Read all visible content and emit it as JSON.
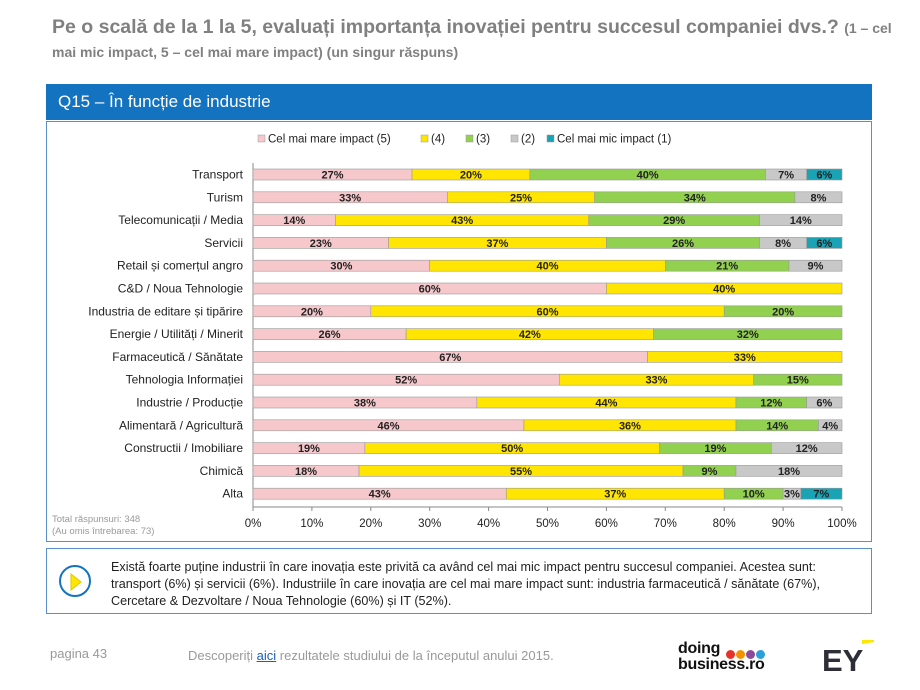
{
  "header": {
    "title_main": "Pe o scală de la 1 la 5, evaluați importanța inovației pentru succesul companiei dvs.?",
    "title_sub": "(1 – cel mai mic impact, 5 – cel mai mare impact) (un singur răspuns)"
  },
  "banner": {
    "label": "Q15 – În funcție de industrie"
  },
  "note": {
    "line1": "Total răspunsuri: 348",
    "line2": "(Au omis întrebarea: 73)"
  },
  "insight": {
    "text": "Există foarte puține industrii în care inovația este privită ca având cel mai mic impact pentru succesul companiei. Acestea sunt: transport (6%) și servicii (6%). Industriile în care inovația are cel mai mare impact sunt: industria farmaceutică / sănătate (67%), Cercetare & Dezvoltare / Noua Tehnologie (60%) și IT (52%).",
    "icon": "play-arrow-icon"
  },
  "footer": {
    "page": "pagina 43",
    "text_before": "Descoperiți ",
    "link": "aici",
    "text_after": " rezultatele studiului de la începutul anului 2015.",
    "logo_line1": "doing",
    "logo_line2": "business.ro",
    "logo_dot_colors": [
      "#e63329",
      "#f39200",
      "#8c4a9c",
      "#2a9fd8"
    ],
    "ey_logo": "EY"
  },
  "chart_data": {
    "type": "bar",
    "orientation": "horizontal",
    "stacked": "percent",
    "categories": [
      "Transport",
      "Turism",
      "Telecomunicații / Media",
      "Servicii",
      "Retail și comerțul angro",
      "C&D / Noua Tehnologie",
      "Industria de editare și tipărire",
      "Energie / Utilități / Minerit",
      "Farmaceutică / Sănătate",
      "Tehnologia Informației",
      "Industrie / Producție",
      "Alimentară / Agricultură",
      "Constructii / Imobiliare",
      "Chimică",
      "Alta"
    ],
    "series": [
      {
        "name": "Cel mai mare impact (5)",
        "color": "#f6c8cc",
        "values": [
          27,
          33,
          14,
          23,
          30,
          60,
          20,
          26,
          67,
          52,
          38,
          46,
          19,
          18,
          43
        ]
      },
      {
        "name": "(4)",
        "color": "#ffe500",
        "values": [
          20,
          25,
          43,
          37,
          40,
          40,
          60,
          42,
          33,
          33,
          44,
          36,
          50,
          55,
          37
        ]
      },
      {
        "name": "(3)",
        "color": "#92d050",
        "values": [
          40,
          34,
          29,
          26,
          21,
          0,
          20,
          32,
          0,
          15,
          12,
          14,
          19,
          9,
          10
        ]
      },
      {
        "name": "(2)",
        "color": "#c8c8c8",
        "values": [
          7,
          8,
          14,
          8,
          9,
          0,
          0,
          0,
          0,
          0,
          6,
          4,
          12,
          18,
          3
        ]
      },
      {
        "name": "Cel mai mic impact (1)",
        "color": "#1aa3b4",
        "values": [
          6,
          0,
          0,
          6,
          0,
          0,
          0,
          0,
          0,
          0,
          0,
          0,
          0,
          0,
          7
        ]
      }
    ],
    "xlim": [
      0,
      100
    ],
    "xticks": [
      "0%",
      "10%",
      "20%",
      "30%",
      "40%",
      "50%",
      "60%",
      "70%",
      "80%",
      "90%",
      "100%"
    ],
    "legend_position": "top",
    "grid": false
  }
}
